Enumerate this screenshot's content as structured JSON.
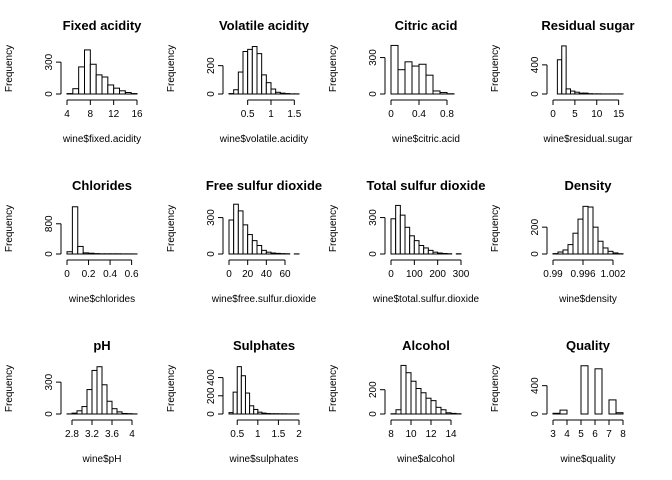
{
  "chart_data": [
    {
      "type": "bar",
      "title": "Fixed acidity",
      "xlabel": "wine$fixed.acidity",
      "ylabel": "Frequency",
      "xlim": [
        4,
        16
      ],
      "ylim": [
        0,
        480
      ],
      "xticks": [
        4,
        8,
        12,
        16
      ],
      "yticks": [
        0,
        300
      ],
      "bins": [
        4,
        5,
        6,
        7,
        8,
        9,
        10,
        11,
        12,
        13,
        14,
        15,
        16
      ],
      "counts": [
        4,
        50,
        255,
        415,
        280,
        180,
        160,
        85,
        55,
        30,
        14,
        4
      ]
    },
    {
      "type": "bar",
      "title": "Volatile acidity",
      "xlabel": "wine$volatile.acidity",
      "ylabel": "Frequency",
      "xlim": [
        0.1,
        1.6
      ],
      "ylim": [
        0,
        360
      ],
      "xticks": [
        0.5,
        1.0,
        1.5
      ],
      "yticks": [
        0,
        200
      ],
      "bins": [
        0.1,
        0.2,
        0.3,
        0.4,
        0.5,
        0.6,
        0.7,
        0.8,
        0.9,
        1.0,
        1.1,
        1.2,
        1.3,
        1.4,
        1.5,
        1.6
      ],
      "counts": [
        3,
        30,
        155,
        300,
        315,
        335,
        285,
        135,
        80,
        35,
        12,
        6,
        3,
        1,
        1
      ]
    },
    {
      "type": "bar",
      "title": "Citric acid",
      "xlabel": "wine$citric.acid",
      "ylabel": "Frequency",
      "xlim": [
        0,
        1
      ],
      "ylim": [
        0,
        420
      ],
      "xticks": [
        0.0,
        0.4,
        0.8
      ],
      "yticks": [
        0,
        300
      ],
      "bins": [
        0,
        0.1,
        0.2,
        0.3,
        0.4,
        0.5,
        0.6,
        0.7,
        0.8,
        0.9,
        1.0
      ],
      "counts": [
        400,
        200,
        265,
        230,
        245,
        155,
        25,
        12,
        2,
        0
      ]
    },
    {
      "type": "bar",
      "title": "Residual sugar",
      "xlabel": "wine$residual.sugar",
      "ylabel": "Frequency",
      "xlim": [
        0,
        16
      ],
      "ylim": [
        0,
        700
      ],
      "xticks": [
        0,
        5,
        10,
        15
      ],
      "yticks": [
        0,
        400
      ],
      "bins": [
        0,
        1,
        2,
        3,
        4,
        5,
        6,
        7,
        8,
        9,
        10,
        11,
        12,
        13,
        14,
        15,
        16
      ],
      "counts": [
        0,
        470,
        660,
        70,
        40,
        25,
        12,
        12,
        4,
        2,
        2,
        1,
        1,
        1,
        1,
        1
      ]
    },
    {
      "type": "bar",
      "title": "Chlorides",
      "xlabel": "wine$chlorides",
      "ylabel": "Frequency",
      "xlim": [
        0,
        0.65
      ],
      "ylim": [
        0,
        1350
      ],
      "xticks": [
        0.0,
        0.2,
        0.4,
        0.6
      ],
      "yticks": [
        0,
        800
      ],
      "bins": [
        0,
        0.05,
        0.1,
        0.15,
        0.2,
        0.25,
        0.3,
        0.35,
        0.4,
        0.45,
        0.5,
        0.55,
        0.6,
        0.65
      ],
      "counts": [
        60,
        1250,
        200,
        30,
        20,
        10,
        5,
        5,
        5,
        5,
        3,
        3,
        2
      ]
    },
    {
      "type": "bar",
      "title": "Free sulfur dioxide",
      "xlabel": "wine$free.sulfur.dioxide",
      "ylabel": "Frequency",
      "xlim": [
        0,
        75
      ],
      "ylim": [
        0,
        420
      ],
      "xticks": [
        0,
        20,
        40,
        60
      ],
      "yticks": [
        0,
        300
      ],
      "bins": [
        0,
        5,
        10,
        15,
        20,
        25,
        30,
        35,
        40,
        45,
        50,
        55,
        60,
        65,
        70,
        75
      ],
      "counts": [
        280,
        410,
        355,
        240,
        160,
        110,
        70,
        30,
        15,
        8,
        5,
        3,
        2,
        0,
        1
      ]
    },
    {
      "type": "bar",
      "title": "Total sulfur dioxide",
      "xlabel": "wine$total.sulfur.dioxide",
      "ylabel": "Frequency",
      "xlim": [
        0,
        300
      ],
      "ylim": [
        0,
        420
      ],
      "xticks": [
        0,
        100,
        200,
        300
      ],
      "yticks": [
        0,
        300
      ],
      "bins": [
        0,
        20,
        40,
        60,
        80,
        100,
        120,
        140,
        160,
        180,
        200,
        220,
        240,
        260,
        280,
        300
      ],
      "counts": [
        290,
        400,
        320,
        220,
        150,
        110,
        70,
        50,
        30,
        15,
        8,
        4,
        2,
        0,
        2
      ]
    },
    {
      "type": "bar",
      "title": "Density",
      "xlabel": "wine$density",
      "ylabel": "Frequency",
      "xlim": [
        0.99,
        1.004
      ],
      "ylim": [
        0,
        380
      ],
      "xticks": [
        0.99,
        0.996,
        1.002
      ],
      "yticks": [
        0,
        200
      ],
      "bins": [
        0.99,
        0.991,
        0.992,
        0.993,
        0.994,
        0.995,
        0.996,
        0.997,
        0.998,
        0.999,
        1.0,
        1.001,
        1.002,
        1.003,
        1.004
      ],
      "counts": [
        3,
        15,
        30,
        70,
        155,
        260,
        355,
        350,
        200,
        95,
        45,
        20,
        8,
        2
      ]
    },
    {
      "type": "bar",
      "title": "pH",
      "xlabel": "wine$pH",
      "ylabel": "Frequency",
      "xlim": [
        2.7,
        4.1
      ],
      "ylim": [
        0,
        480
      ],
      "xticks": [
        2.8,
        3.2,
        3.6,
        4.0
      ],
      "yticks": [
        0,
        300
      ],
      "bins": [
        2.7,
        2.8,
        2.9,
        3.0,
        3.1,
        3.2,
        3.3,
        3.4,
        3.5,
        3.6,
        3.7,
        3.8,
        3.9,
        4.0,
        4.1
      ],
      "counts": [
        1,
        8,
        30,
        70,
        230,
        410,
        445,
        275,
        120,
        50,
        20,
        5,
        3,
        1
      ]
    },
    {
      "type": "bar",
      "title": "Sulphates",
      "xlabel": "wine$sulphates",
      "ylabel": "Frequency",
      "xlim": [
        0.3,
        2.0
      ],
      "ylim": [
        0,
        560
      ],
      "xticks": [
        0.5,
        1.0,
        1.5,
        2.0
      ],
      "yticks": [
        0,
        200,
        400
      ],
      "bins": [
        0.3,
        0.4,
        0.5,
        0.6,
        0.7,
        0.8,
        0.9,
        1.0,
        1.1,
        1.2,
        1.3,
        1.4,
        1.5,
        1.6,
        1.7,
        1.8,
        1.9,
        2.0
      ],
      "counts": [
        15,
        240,
        520,
        420,
        230,
        90,
        50,
        20,
        10,
        5,
        3,
        3,
        2,
        2,
        1,
        1,
        1
      ]
    },
    {
      "type": "bar",
      "title": "Alcohol",
      "xlabel": "wine$alcohol",
      "ylabel": "Frequency",
      "xlim": [
        8,
        15
      ],
      "ylim": [
        0,
        420
      ],
      "xticks": [
        8,
        10,
        12,
        14
      ],
      "yticks": [
        0,
        200
      ],
      "bins": [
        8,
        8.5,
        9,
        9.5,
        10,
        10.5,
        11,
        11.5,
        12,
        12.5,
        13,
        13.5,
        14,
        14.5,
        15
      ],
      "counts": [
        2,
        35,
        400,
        340,
        270,
        210,
        175,
        130,
        110,
        55,
        35,
        10,
        5,
        2
      ]
    },
    {
      "type": "bar",
      "title": "Quality",
      "xlabel": "wine$quality",
      "ylabel": "Frequency",
      "xlim": [
        3,
        8
      ],
      "ylim": [
        0,
        720
      ],
      "xticks": [
        3,
        4,
        5,
        6,
        7,
        8
      ],
      "yticks": [
        0,
        400
      ],
      "bins": [
        3,
        3.5,
        4,
        4.5,
        5,
        5.5,
        6,
        6.5,
        7,
        7.5,
        8
      ],
      "counts": [
        10,
        55,
        0,
        0,
        681,
        0,
        638,
        0,
        199,
        18
      ]
    }
  ]
}
